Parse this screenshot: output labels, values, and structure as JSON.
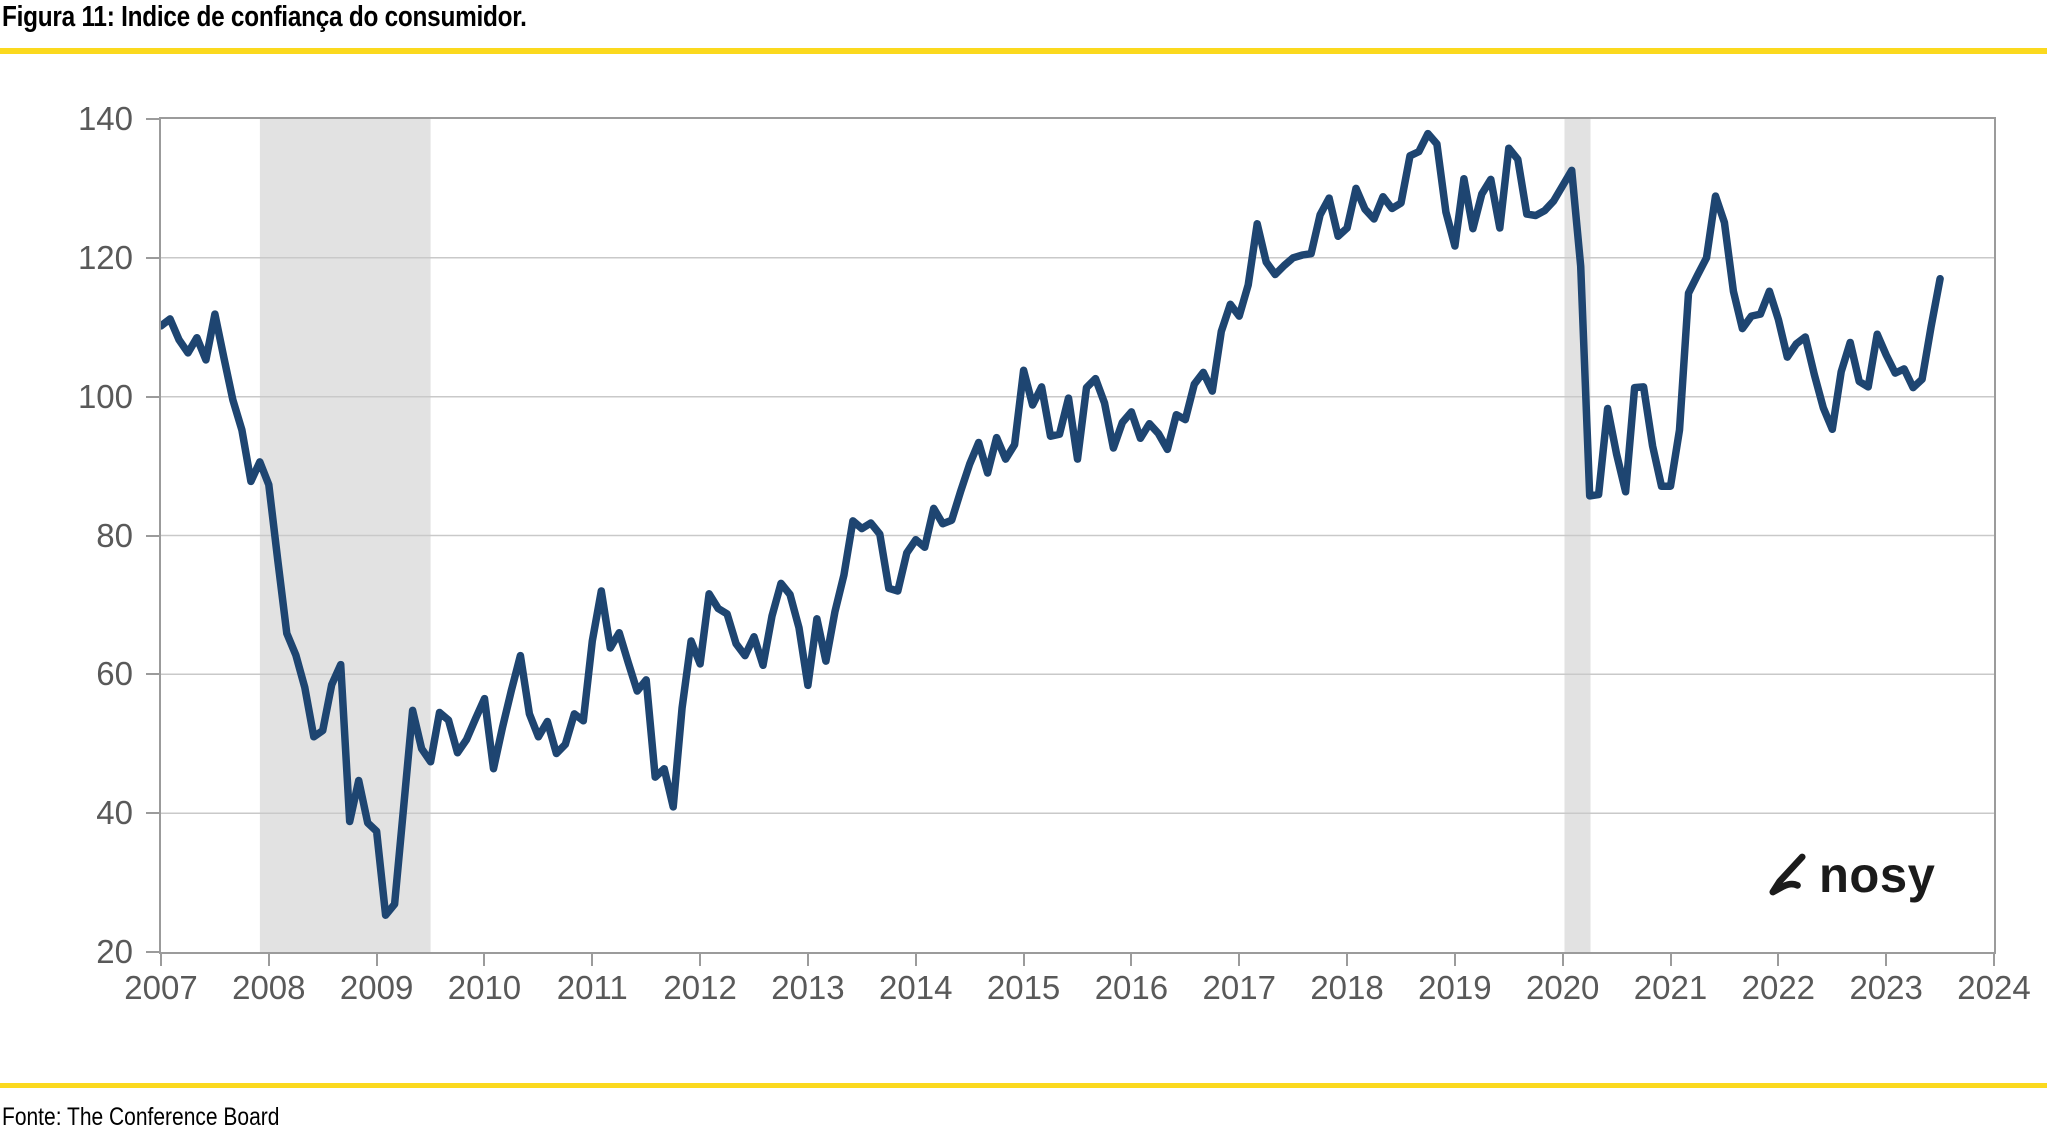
{
  "figure": {
    "title": "Figura 11: Indice de confiança do consumidor.",
    "source": "Fonte: The Conference Board",
    "logo_text": "nosy",
    "accent_color": "#fbd91e"
  },
  "chart_data": {
    "type": "line",
    "title": "Figura 11: Indice de confiança do consumidor.",
    "xlabel": "",
    "ylabel": "",
    "frequency": "monthly",
    "x_start_year": 2007,
    "x_start_month": 1,
    "xlim": [
      2007,
      2024
    ],
    "ylim": [
      20,
      140
    ],
    "x_ticks": [
      2007,
      2008,
      2009,
      2010,
      2011,
      2012,
      2013,
      2014,
      2015,
      2016,
      2017,
      2018,
      2019,
      2020,
      2021,
      2022,
      2023,
      2024
    ],
    "y_ticks": [
      140,
      120,
      100,
      80,
      60,
      40,
      20
    ],
    "grid": "horizontal",
    "grid_color": "#c9c9c9",
    "axis_color": "#9b9b9b",
    "band_color": "#e2e2e2",
    "recession_bands": [
      {
        "from": 2007.917,
        "to": 2009.5
      },
      {
        "from": 2020.017,
        "to": 2020.258
      }
    ],
    "series": [
      {
        "name": "Indice de confiança do consumidor",
        "color": "#1e4571",
        "values": [
          110.2,
          111.2,
          108.2,
          106.3,
          108.5,
          105.3,
          111.9,
          105.6,
          99.5,
          95.2,
          87.8,
          90.6,
          87.3,
          76.4,
          65.9,
          62.8,
          58.1,
          51.0,
          51.9,
          58.5,
          61.4,
          38.8,
          44.7,
          38.6,
          37.4,
          25.3,
          26.9,
          40.8,
          54.8,
          49.3,
          47.4,
          54.5,
          53.4,
          48.7,
          50.6,
          53.6,
          56.5,
          46.4,
          52.3,
          57.7,
          62.7,
          54.3,
          51.0,
          53.2,
          48.6,
          49.9,
          54.3,
          53.3,
          64.8,
          72.0,
          63.8,
          66.0,
          61.7,
          57.6,
          59.2,
          45.2,
          46.4,
          40.9,
          55.2,
          64.8,
          61.5,
          71.6,
          69.5,
          68.7,
          64.4,
          62.7,
          65.4,
          61.3,
          68.4,
          73.1,
          71.5,
          66.7,
          58.4,
          68.0,
          61.9,
          69.0,
          74.3,
          82.1,
          81.0,
          81.8,
          80.2,
          72.4,
          72.0,
          77.5,
          79.4,
          78.3,
          83.9,
          81.7,
          82.2,
          86.4,
          90.3,
          93.4,
          89.0,
          94.1,
          91.0,
          93.1,
          103.8,
          98.8,
          101.4,
          94.3,
          94.6,
          99.8,
          91.0,
          101.3,
          102.6,
          99.1,
          92.6,
          96.3,
          97.8,
          94.0,
          96.1,
          94.7,
          92.4,
          97.4,
          96.7,
          101.8,
          103.5,
          100.8,
          109.4,
          113.3,
          111.6,
          116.1,
          124.9,
          119.4,
          117.6,
          118.9,
          120.0,
          120.4,
          120.6,
          126.2,
          128.6,
          123.1,
          124.3,
          130.0,
          127.0,
          125.6,
          128.8,
          127.1,
          127.9,
          134.7,
          135.3,
          137.9,
          136.4,
          126.6,
          121.7,
          131.4,
          124.2,
          129.2,
          131.3,
          124.3,
          135.8,
          134.2,
          126.3,
          126.1,
          126.8,
          128.2,
          130.4,
          132.6,
          118.8,
          85.7,
          85.9,
          98.3,
          91.7,
          86.3,
          101.3,
          101.4,
          92.9,
          87.1,
          87.1,
          95.2,
          114.9,
          117.5,
          120.0,
          128.9,
          125.1,
          115.2,
          109.8,
          111.6,
          111.9,
          115.2,
          111.1,
          105.7,
          107.6,
          108.6,
          103.2,
          98.4,
          95.3,
          103.6,
          107.8,
          102.2,
          101.4,
          109.0,
          106.0,
          103.4,
          104.0,
          101.3,
          102.5,
          110.1,
          117.0
        ]
      }
    ]
  }
}
